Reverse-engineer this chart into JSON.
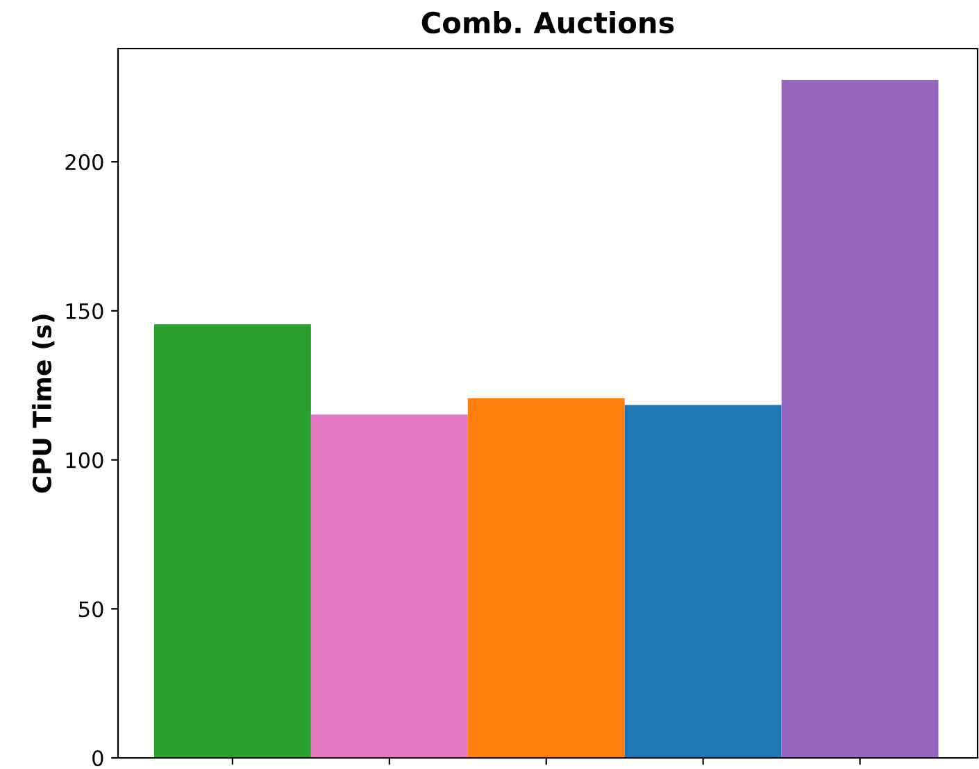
{
  "chart_data": {
    "type": "bar",
    "title": "Comb. Auctions",
    "ylabel": "CPU Time (s)",
    "categories": [
      null,
      null,
      null,
      null,
      null
    ],
    "values": [
      145.5,
      115.2,
      120.7,
      118.4,
      227.5
    ],
    "colors": [
      "#2ca02c",
      "#e377c2",
      "#ff7f0e",
      "#1f77b4",
      "#9467bd"
    ],
    "ylim": [
      0,
      238
    ],
    "yticks": [
      0,
      50,
      100,
      150,
      200
    ],
    "grid": false,
    "legend": false
  }
}
